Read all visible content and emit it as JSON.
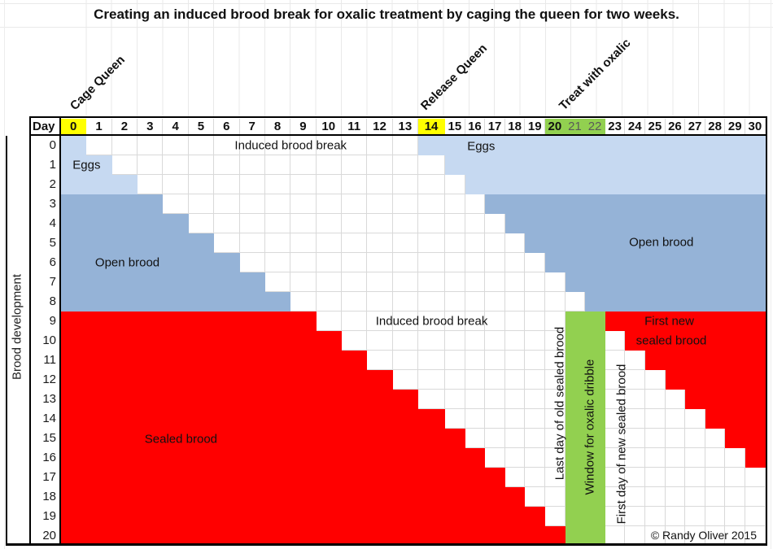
{
  "title": "Creating an induced brood break for oxalic treatment by caging the queen for two weeks.",
  "event_labels": [
    {
      "label": "Cage Queen",
      "day": 0
    },
    {
      "label": "Release Queen",
      "day": 14
    },
    {
      "label": "Treat with oxalic",
      "day": 20
    }
  ],
  "header": {
    "day_label": "Day",
    "days": [
      0,
      1,
      2,
      3,
      4,
      5,
      6,
      7,
      8,
      9,
      10,
      11,
      12,
      13,
      14,
      15,
      16,
      17,
      18,
      19,
      20,
      21,
      22,
      23,
      24,
      25,
      26,
      27,
      28,
      29,
      30
    ],
    "yellow_days": [
      0,
      14
    ],
    "green_days": [
      20,
      21,
      22
    ],
    "muted_days": [
      21,
      22
    ],
    "yellow_color": "#ffff00",
    "green_color": "#92d050",
    "muted_text_color": "#595959"
  },
  "y_axis": {
    "label": "Brood development",
    "rows": [
      0,
      1,
      2,
      3,
      4,
      5,
      6,
      7,
      8,
      9,
      10,
      11,
      12,
      13,
      14,
      15,
      16,
      17,
      18,
      19,
      20
    ]
  },
  "chart_data": {
    "type": "heatmap",
    "x_label": "Day",
    "x_range": [
      0,
      30
    ],
    "y_label": "Brood development",
    "y_range": [
      0,
      20
    ],
    "queen_caged_day": 0,
    "queen_released_day": 14,
    "old_brood_rule": "cell colored when day <= brood_row (brood laid before caging ages out)",
    "new_brood_rule": "cell colored when day >= brood_row + 14 (laying resumes when queen released on day 14)",
    "stages": [
      {
        "name": "Eggs",
        "row_start": 0,
        "row_end": 2,
        "color": "#c6d9f1"
      },
      {
        "name": "Open brood",
        "row_start": 3,
        "row_end": 8,
        "color": "#95b3d7"
      },
      {
        "name": "Sealed brood",
        "row_start": 9,
        "row_end": 20,
        "color": "#ff0000"
      }
    ],
    "treatment_window": {
      "label": "Window for oxalic dribble",
      "day_start": 21,
      "day_end": 22,
      "row_start": 9,
      "row_end": 20,
      "color": "#92d050"
    },
    "annotations": [
      {
        "id": "eggs-left",
        "text": "Eggs",
        "day": 1.0,
        "row": 1.5,
        "orient": "h"
      },
      {
        "id": "induced-top",
        "text": "Induced brood break",
        "day": 9.0,
        "row": 0.52,
        "orient": "h"
      },
      {
        "id": "eggs-right",
        "text": "Eggs",
        "day": 16.8,
        "row": 0.55,
        "orient": "h"
      },
      {
        "id": "open-left",
        "text": "Open brood",
        "day": 2.6,
        "row": 6.5,
        "orient": "h"
      },
      {
        "id": "open-right",
        "text": "Open brood",
        "day": 25.8,
        "row": 5.45,
        "orient": "h"
      },
      {
        "id": "induced-mid",
        "text": "Induced brood break",
        "day": 14.5,
        "row": 9.5,
        "orient": "h"
      },
      {
        "id": "sealed",
        "text": "Sealed brood",
        "day": 4.7,
        "row": 15.55,
        "orient": "h"
      },
      {
        "id": "first-new-line1",
        "text": "First new",
        "day": 26.2,
        "row": 9.5,
        "orient": "h"
      },
      {
        "id": "first-new-line2",
        "text": "sealed brood",
        "day": 26.3,
        "row": 10.5,
        "orient": "h"
      },
      {
        "id": "last-old-sealed",
        "text": "Last day of old sealed brood",
        "day": 20.72,
        "row": 13.7,
        "orient": "v"
      },
      {
        "id": "oxalic-window",
        "text": "Window for oxalic dribble",
        "day": 22.22,
        "row": 14.9,
        "orient": "v"
      },
      {
        "id": "first-new-sealed",
        "text": "First day of new sealed brood",
        "day": 23.8,
        "row": 15.8,
        "orient": "v"
      }
    ]
  },
  "footer": {
    "copyright": "© Randy Oliver 2015"
  }
}
